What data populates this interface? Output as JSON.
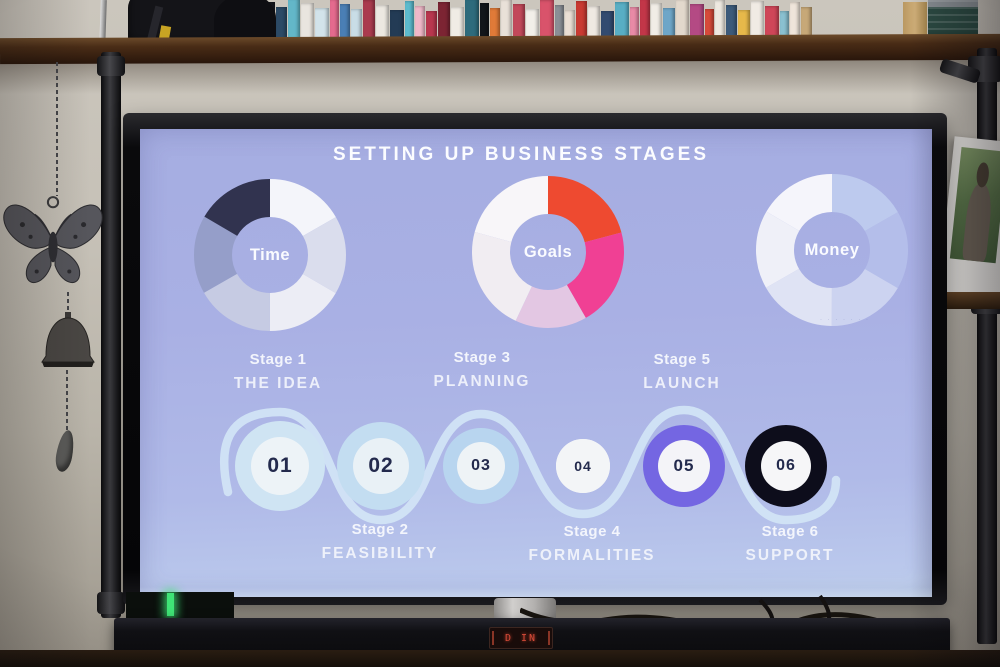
{
  "photo": {
    "wall_color": "#c6c1b7",
    "shelf": {
      "wood_color": "#492c16",
      "bag_color": "#141418",
      "dvd_colors": [
        "#7e62a8",
        "#16181f",
        "#2c4a66",
        "#63b7c8",
        "#e9e5df",
        "#d2e3ea",
        "#e46a8e",
        "#4a7fb5",
        "#c9dde6",
        "#aa3b4e",
        "#ece8e1",
        "#233b55",
        "#5cbacd",
        "#f0b8c8",
        "#b8374e",
        "#7c2433",
        "#f0ece5",
        "#2e6b7c",
        "#12161b",
        "#e07a38",
        "#e9e1d8",
        "#c2495a",
        "#f2efe9",
        "#d9536b",
        "#8a8f96",
        "#eadfd4",
        "#c93a32",
        "#efe9e2",
        "#324b70",
        "#58aec4",
        "#e88aa6",
        "#c23648",
        "#f1ede6",
        "#6ea6c8",
        "#e2d8cc",
        "#b44a84",
        "#d64a3a",
        "#eee9e1",
        "#3c5a7a",
        "#e6b84a",
        "#f0ebe4",
        "#cf4658",
        "#8ac0d0",
        "#efe5da",
        "#c7a878"
      ]
    },
    "ornament": {
      "metal_color": "#56565c",
      "bell_color": "#4a4744"
    },
    "tv_bezel_color": "#0a0a0c",
    "stand_color": "#b3b1af",
    "soundbar": {
      "color": "#101014",
      "display_text": "D IN",
      "display_color": "#d44a38"
    },
    "green_led_color": "#3fe476",
    "table_color": "#2a1d12"
  },
  "slide": {
    "title": "SETTING UP BUSINESS STAGES",
    "background_top": "#a5ade1",
    "background_bottom": "#c4d5ef",
    "text_color": "#f6f8fd",
    "number_color": "#232a4d",
    "wave_color": "#d2e4f5",
    "watermark": "· · · · · · ·",
    "stages": [
      {
        "num": "01",
        "name": "Stage 1",
        "label": "THE IDEA",
        "ring": "#cfe4f3",
        "fill": "#edf3f7",
        "inner": 58,
        "num_size": 21
      },
      {
        "num": "02",
        "name": "Stage 2",
        "label": "FEASIBILITY",
        "ring": "#c3ddf1",
        "fill": "#e9f1f6",
        "inner": 56,
        "num_size": 21
      },
      {
        "num": "03",
        "name": "Stage 3",
        "label": "PLANNING",
        "ring": "#b8d5ef",
        "fill": "#eef3f6",
        "inner": 48,
        "num_size": 16
      },
      {
        "num": "04",
        "name": "Stage 4",
        "label": "FORMALITIES",
        "ring": "#f3f5f7",
        "fill": "#f3f5f7",
        "inner": 54,
        "num_size": 14
      },
      {
        "num": "05",
        "name": "Stage 5",
        "label": "LAUNCH",
        "ring": "#7466e2",
        "fill": "#f4f4f8",
        "inner": 52,
        "num_size": 17
      },
      {
        "num": "06",
        "name": "Stage 6",
        "label": "SUPPORT",
        "ring": "#0d0d1b",
        "fill": "#f6f6f8",
        "inner": 50,
        "num_size": 16
      }
    ]
  },
  "chart_data": [
    {
      "type": "pie",
      "style": "donut",
      "title": "Time",
      "units": "degrees",
      "legend": "none",
      "segments": [
        {
          "color": "#f4f5fa",
          "value": 60
        },
        {
          "color": "#dadded",
          "value": 60
        },
        {
          "color": "#ecedf5",
          "value": 60
        },
        {
          "color": "#c6cbe3",
          "value": 60
        },
        {
          "color": "#959ec9",
          "value": 60
        },
        {
          "color": "#31334f",
          "value": 60
        }
      ]
    },
    {
      "type": "pie",
      "style": "donut",
      "title": "Goals",
      "units": "degrees",
      "legend": "none",
      "segments": [
        {
          "color": "#ee4a30",
          "value": 75
        },
        {
          "color": "#f04094",
          "value": 75
        },
        {
          "color": "#e3c7e3",
          "value": 55
        },
        {
          "color": "#f1edf2",
          "value": 80
        },
        {
          "color": "#f8f6f9",
          "value": 75
        }
      ]
    },
    {
      "type": "pie",
      "style": "donut",
      "title": "Money",
      "units": "degrees",
      "legend": "none",
      "segments": [
        {
          "color": "#bdcaee",
          "value": 60
        },
        {
          "color": "#b4beea",
          "value": 60
        },
        {
          "color": "#ccd3f0",
          "value": 60
        },
        {
          "color": "#dfe3f4",
          "value": 60
        },
        {
          "color": "#eff0f8",
          "value": 60
        },
        {
          "color": "#f5f5fb",
          "value": 60
        }
      ]
    }
  ]
}
